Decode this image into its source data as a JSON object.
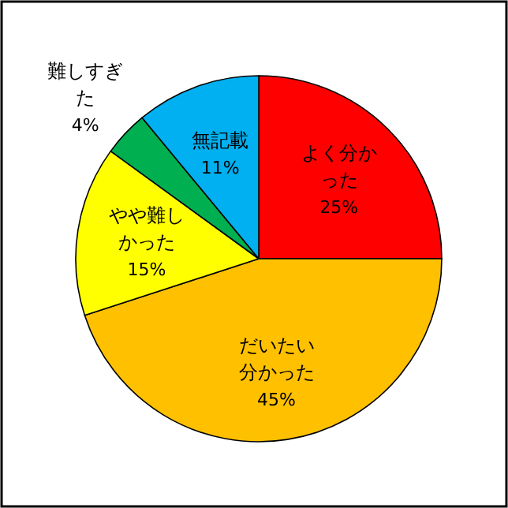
{
  "chart_data": {
    "type": "pie",
    "categories": [
      "よく分かった",
      "だいたい分かった",
      "やや難しかった",
      "難しすぎた",
      "無記載"
    ],
    "values": [
      25,
      45,
      15,
      4,
      11
    ],
    "value_labels": [
      "25%",
      "45%",
      "15%",
      "4%",
      "11%"
    ],
    "colors": [
      "#ff0000",
      "#ffc000",
      "#ffff00",
      "#00b050",
      "#00b0f0"
    ]
  }
}
